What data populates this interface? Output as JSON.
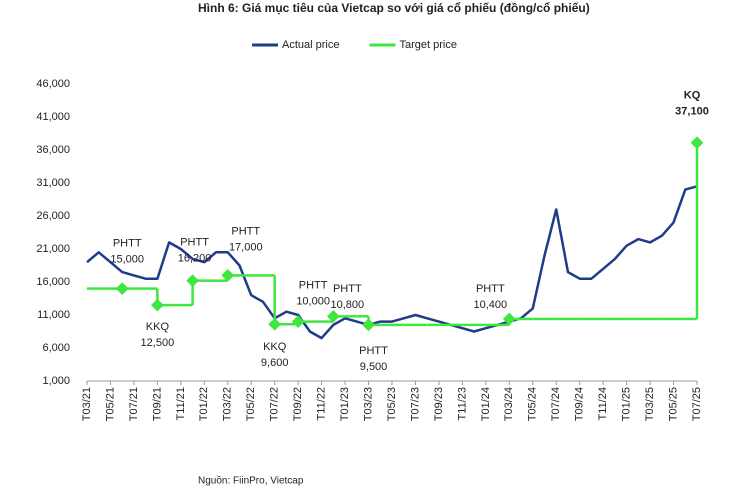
{
  "chart_data": {
    "type": "line",
    "title": "Hình 6: Giá mục tiêu của Vietcap so với giá cổ phiếu (đồng/cổ phiếu)",
    "source": "Nguồn: FiinPro, Vietcap",
    "categories": [
      "T03/21",
      null,
      "T05/21",
      null,
      "T07/21",
      null,
      "T09/21",
      null,
      "T11/21",
      null,
      "T01/22",
      null,
      "T03/22",
      null,
      "T05/22",
      null,
      "T07/22",
      null,
      "T09/22",
      null,
      "T11/22",
      null,
      "T01/23",
      null,
      "T03/23",
      null,
      "T05/23",
      null,
      "T07/23",
      null,
      "T09/23",
      null,
      "T11/23",
      null,
      "T01/24",
      null,
      "T03/24",
      null,
      "T05/24",
      null,
      "T07/24",
      null,
      "T09/24",
      null,
      "T11/24",
      null,
      "T01/25",
      null,
      "T03/25",
      null,
      "T05/25",
      null,
      "T07/25"
    ],
    "series": [
      {
        "name": "Actual price",
        "color": "#1f3c88",
        "values": [
          19000,
          20500,
          19000,
          17500,
          17000,
          16500,
          16500,
          22000,
          21000,
          19500,
          19000,
          20500,
          20500,
          18500,
          14000,
          13000,
          10500,
          11500,
          11000,
          8500,
          7500,
          9500,
          10500,
          10000,
          9500,
          10000,
          10000,
          10500,
          11000,
          10500,
          10000,
          9500,
          9000,
          8500,
          9000,
          9500,
          10000,
          10500,
          12000,
          20000,
          27000,
          17500,
          16500,
          16500,
          18000,
          19500,
          21500,
          22500,
          22000,
          23000,
          25000,
          30000,
          30500
        ]
      },
      {
        "name": "Target price",
        "color": "#3ee63e",
        "values": [
          15000,
          15000,
          15000,
          15000,
          15000,
          15000,
          12500,
          12500,
          12500,
          16200,
          16200,
          16200,
          17000,
          17000,
          17000,
          17000,
          9600,
          9600,
          10000,
          10000,
          10000,
          10800,
          10800,
          10800,
          9500,
          9500,
          9500,
          9500,
          9500,
          9500,
          9500,
          9500,
          9500,
          9500,
          9500,
          9500,
          10400,
          10400,
          10400,
          10400,
          10400,
          10400,
          10400,
          10400,
          10400,
          10400,
          10400,
          10400,
          10400,
          10400,
          10400,
          10400,
          37100
        ]
      }
    ],
    "annotations": [
      {
        "index": 3,
        "label": "PHTT",
        "value": 15000,
        "value_label": "15,000"
      },
      {
        "index": 6,
        "label": "KKQ",
        "value": 12500,
        "value_label": "12,500"
      },
      {
        "index": 9,
        "label": "PHTT",
        "value": 16200,
        "value_label": "16,200"
      },
      {
        "index": 12,
        "label": "PHTT",
        "value": 17000,
        "value_label": "17,000"
      },
      {
        "index": 16,
        "label": "KKQ",
        "value": 9600,
        "value_label": "9,600"
      },
      {
        "index": 18,
        "label": "PHTT",
        "value": 10000,
        "value_label": "10,000"
      },
      {
        "index": 21,
        "label": "PHTT",
        "value": 10800,
        "value_label": "10,800"
      },
      {
        "index": 24,
        "label": "PHTT",
        "value": 9500,
        "value_label": "9,500"
      },
      {
        "index": 36,
        "label": "PHTT",
        "value": 10400,
        "value_label": "10,400"
      },
      {
        "index": 52,
        "label": "KQ",
        "value": 37100,
        "value_label": "37,100"
      }
    ],
    "ylim": [
      1000,
      46000
    ],
    "yticks": [
      {
        "value": 1000,
        "label": "1,000"
      },
      {
        "value": 6000,
        "label": "6,000"
      },
      {
        "value": 11000,
        "label": "11,000"
      },
      {
        "value": 16000,
        "label": "16,000"
      },
      {
        "value": 21000,
        "label": "21,000"
      },
      {
        "value": 26000,
        "label": "26,000"
      },
      {
        "value": 31000,
        "label": "31,000"
      },
      {
        "value": 36000,
        "label": "36,000"
      },
      {
        "value": 41000,
        "label": "41,000"
      },
      {
        "value": 46000,
        "label": "46,000"
      }
    ],
    "grid": false,
    "legend": "top"
  }
}
